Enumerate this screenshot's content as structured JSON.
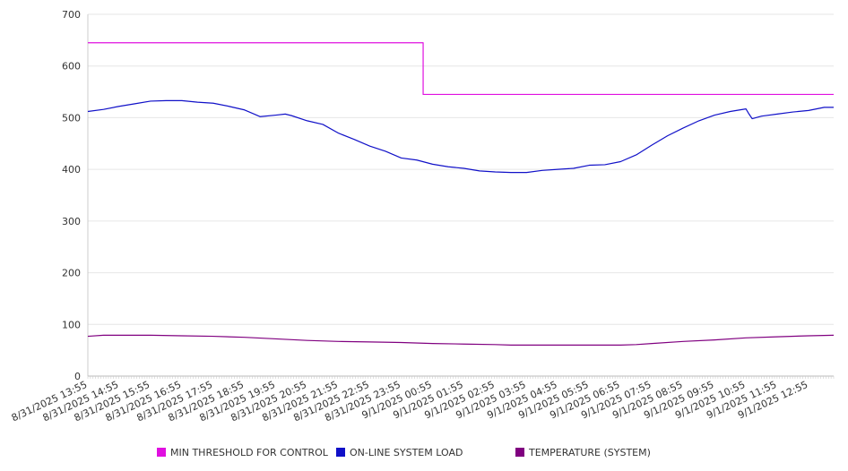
{
  "chart_data": {
    "type": "line",
    "title": "",
    "xlabel": "",
    "ylabel": "",
    "ylim": [
      0,
      700
    ],
    "yticks": [
      0,
      100,
      200,
      300,
      400,
      500,
      600,
      700
    ],
    "grid": true,
    "legend_position": "bottom",
    "x_tick_labels": [
      "8/31/2025 13:55",
      "8/31/2025 14:55",
      "8/31/2025 15:55",
      "8/31/2025 16:55",
      "8/31/2025 17:55",
      "8/31/2025 18:55",
      "8/31/2025 19:55",
      "8/31/2025 20:55",
      "8/31/2025 21:55",
      "8/31/2025 22:55",
      "8/31/2025 23:55",
      "9/1/2025 00:55",
      "9/1/2025 01:55",
      "9/1/2025 02:55",
      "9/1/2025 03:55",
      "9/1/2025 04:55",
      "9/1/2025 05:55",
      "9/1/2025 06:55",
      "9/1/2025 07:55",
      "9/1/2025 08:55",
      "9/1/2025 09:55",
      "9/1/2025 10:55",
      "9/1/2025 11:55",
      "9/1/2025 12:55"
    ],
    "x_range_hours": [
      0,
      23.8
    ],
    "series": [
      {
        "name": "MIN THRESHOLD FOR CONTROL",
        "color": "#e010e0",
        "step": true,
        "x": [
          0,
          10.7,
          10.7,
          23.8
        ],
        "values": [
          645,
          645,
          545,
          545
        ]
      },
      {
        "name": "ON-LINE SYSTEM LOAD",
        "color": "#1010c8",
        "x": [
          0,
          0.5,
          1,
          1.5,
          2,
          2.5,
          3,
          3.5,
          4,
          4.5,
          5,
          5.5,
          6,
          6.3,
          6.5,
          7,
          7.5,
          8,
          8.5,
          9,
          9.5,
          10,
          10.5,
          11,
          11.5,
          12,
          12.5,
          13,
          13.5,
          14,
          14.5,
          15,
          15.5,
          16,
          16.5,
          17,
          17.5,
          18,
          18.5,
          19,
          19.5,
          20,
          20.5,
          21,
          21.1,
          21.2,
          21.5,
          22,
          22.5,
          23,
          23.5,
          23.8
        ],
        "values": [
          512,
          516,
          522,
          527,
          532,
          533,
          533,
          530,
          528,
          522,
          515,
          502,
          505,
          507,
          504,
          494,
          487,
          470,
          458,
          445,
          435,
          422,
          418,
          410,
          405,
          402,
          397,
          395,
          394,
          394,
          398,
          400,
          402,
          408,
          409,
          415,
          428,
          447,
          465,
          480,
          494,
          505,
          512,
          517,
          507,
          498,
          503,
          507,
          511,
          514,
          520,
          520
        ]
      },
      {
        "name": "TEMPERATURE (SYSTEM)",
        "color": "#800080",
        "x": [
          0,
          0.5,
          1,
          2,
          3,
          4,
          5,
          6,
          7,
          8,
          9,
          10,
          11,
          12,
          13,
          13.5,
          14,
          15,
          16,
          17,
          17.5,
          18,
          19,
          20,
          21,
          22,
          23,
          23.8
        ],
        "values": [
          77,
          79,
          79,
          79,
          78,
          77,
          75,
          72,
          69,
          67,
          66,
          65,
          63,
          62,
          61,
          60,
          60,
          60,
          60,
          60,
          61,
          63,
          67,
          70,
          74,
          76,
          78,
          79
        ]
      }
    ]
  }
}
